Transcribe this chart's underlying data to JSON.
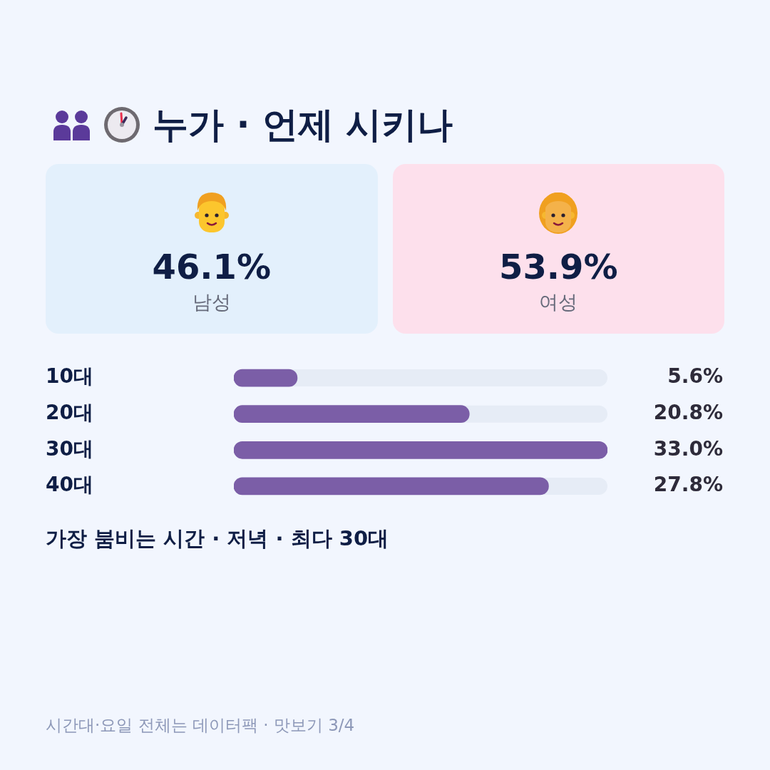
{
  "chart_data": [
    {
      "type": "other",
      "title": "누가 · 언제 시키나",
      "categories": [
        "남성",
        "여성"
      ],
      "value_labels": [
        "46.1%",
        "53.9%"
      ],
      "colors": [
        "#e3f0fc",
        "#fde0ec"
      ]
    },
    {
      "type": "bar",
      "orientation": "horizontal",
      "categories": [
        "10대",
        "20대",
        "30대",
        "40대"
      ],
      "values": [
        5.6,
        20.8,
        33.0,
        27.8
      ],
      "value_labels": [
        "5.6%",
        "20.8%",
        "33.0%",
        "27.8%"
      ],
      "color": "#7b5ea7",
      "xlim": [
        0,
        33
      ],
      "tick_labels": "y",
      "annotations": [
        "가장 붐비는 시간 · 저녁 · 최다 30대",
        "시간대·요일 전체는 데이터팩 · 맛보기 3/4"
      ]
    }
  ]
}
